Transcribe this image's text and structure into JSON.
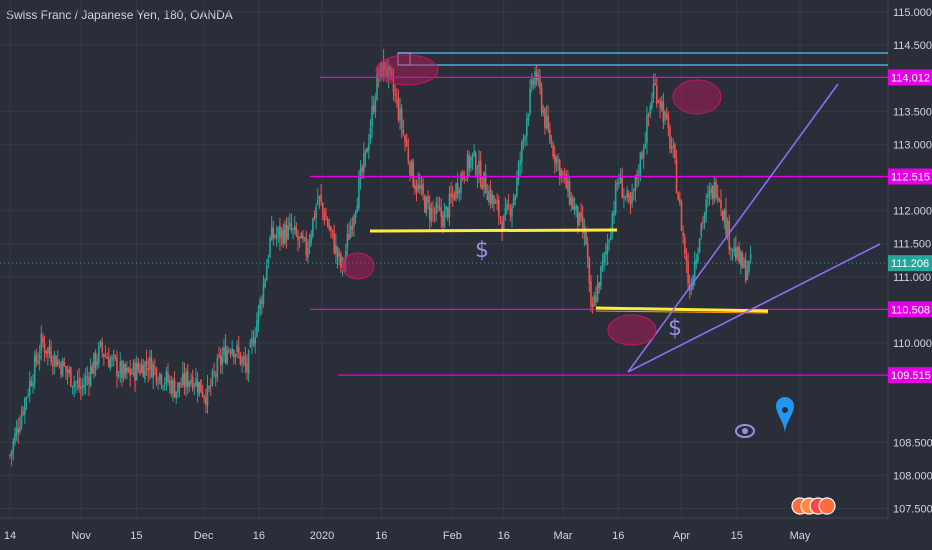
{
  "header": {
    "title": "Swiss Franc / Japanese Yen, 180, OANDA"
  },
  "colors": {
    "background": "#2a2e39",
    "grid": "#363a45",
    "up_candle": "#26a69a",
    "down_candle": "#ef5350",
    "level_line": "#e600e6",
    "level_badge": "#e600e6",
    "current_badge": "#26a69a",
    "support_line": "#ffeb3b",
    "trendline": "#8e6cf0",
    "top_box": "#4fc3f7",
    "ellipse": "#c2185b"
  },
  "chart_data": {
    "type": "candlestick",
    "title": "Swiss Franc / Japanese Yen, 180, OANDA",
    "x_tick_labels": [
      "14",
      "Nov",
      "15",
      "Dec",
      "16",
      "2020",
      "16",
      "Feb",
      "16",
      "Mar",
      "16",
      "Apr",
      "15",
      "May"
    ],
    "y_tick_labels": [
      "115.000",
      "114.500",
      "113.500",
      "113.000",
      "112.000",
      "111.500",
      "111.000",
      "110.000",
      "108.500",
      "108.000",
      "107.500"
    ],
    "ylim": [
      107.3,
      115.2
    ],
    "current_price": "111.206",
    "horizontal_levels": [
      {
        "label": "114.012",
        "value": 114.012
      },
      {
        "label": "112.515",
        "value": 112.515
      },
      {
        "label": "110.508",
        "value": 110.508
      },
      {
        "label": "109.515",
        "value": 109.515
      }
    ],
    "price_path": [
      [
        "2019-10-14",
        108.3
      ],
      [
        "2019-10-18",
        109.2
      ],
      [
        "2019-10-22",
        110.0
      ],
      [
        "2019-10-28",
        109.6
      ],
      [
        "2019-11-01",
        109.3
      ],
      [
        "2019-11-06",
        109.9
      ],
      [
        "2019-11-12",
        109.5
      ],
      [
        "2019-11-18",
        109.7
      ],
      [
        "2019-11-25",
        109.3
      ],
      [
        "2019-11-29",
        109.5
      ],
      [
        "2019-12-03",
        109.2
      ],
      [
        "2019-12-06",
        109.7
      ],
      [
        "2019-12-09",
        110.0
      ],
      [
        "2019-12-13",
        109.6
      ],
      [
        "2019-12-17",
        110.8
      ],
      [
        "2019-12-19",
        111.6
      ],
      [
        "2019-12-24",
        111.7
      ],
      [
        "2019-12-28",
        111.4
      ],
      [
        "2019-12-31",
        112.2
      ],
      [
        "2020-01-03",
        111.7
      ],
      [
        "2020-01-06",
        111.1
      ],
      [
        "2020-01-09",
        112.0
      ],
      [
        "2020-01-12",
        112.8
      ],
      [
        "2020-01-15",
        114.0
      ],
      [
        "2020-01-17",
        114.2
      ],
      [
        "2020-01-20",
        113.6
      ],
      [
        "2020-01-24",
        112.5
      ],
      [
        "2020-01-28",
        112.0
      ],
      [
        "2020-02-01",
        111.9
      ],
      [
        "2020-02-05",
        112.5
      ],
      [
        "2020-02-08",
        112.8
      ],
      [
        "2020-02-12",
        112.3
      ],
      [
        "2020-02-16",
        111.8
      ],
      [
        "2020-02-19",
        112.3
      ],
      [
        "2020-02-22",
        113.5
      ],
      [
        "2020-02-24",
        114.1
      ],
      [
        "2020-02-27",
        113.2
      ],
      [
        "2020-03-02",
        112.5
      ],
      [
        "2020-03-05",
        112.0
      ],
      [
        "2020-03-08",
        111.5
      ],
      [
        "2020-03-09",
        110.4
      ],
      [
        "2020-03-11",
        110.9
      ],
      [
        "2020-03-13",
        111.4
      ],
      [
        "2020-03-16",
        112.5
      ],
      [
        "2020-03-19",
        112.0
      ],
      [
        "2020-03-23",
        113.2
      ],
      [
        "2020-03-25",
        113.9
      ],
      [
        "2020-03-27",
        113.6
      ],
      [
        "2020-03-30",
        112.8
      ],
      [
        "2020-04-01",
        111.8
      ],
      [
        "2020-04-03",
        110.8
      ],
      [
        "2020-04-06",
        111.8
      ],
      [
        "2020-04-08",
        112.2
      ],
      [
        "2020-04-10",
        112.4
      ],
      [
        "2020-04-13",
        111.6
      ],
      [
        "2020-04-15",
        111.3
      ],
      [
        "2020-04-17",
        111.1
      ],
      [
        "2020-04-19",
        111.2
      ]
    ]
  }
}
